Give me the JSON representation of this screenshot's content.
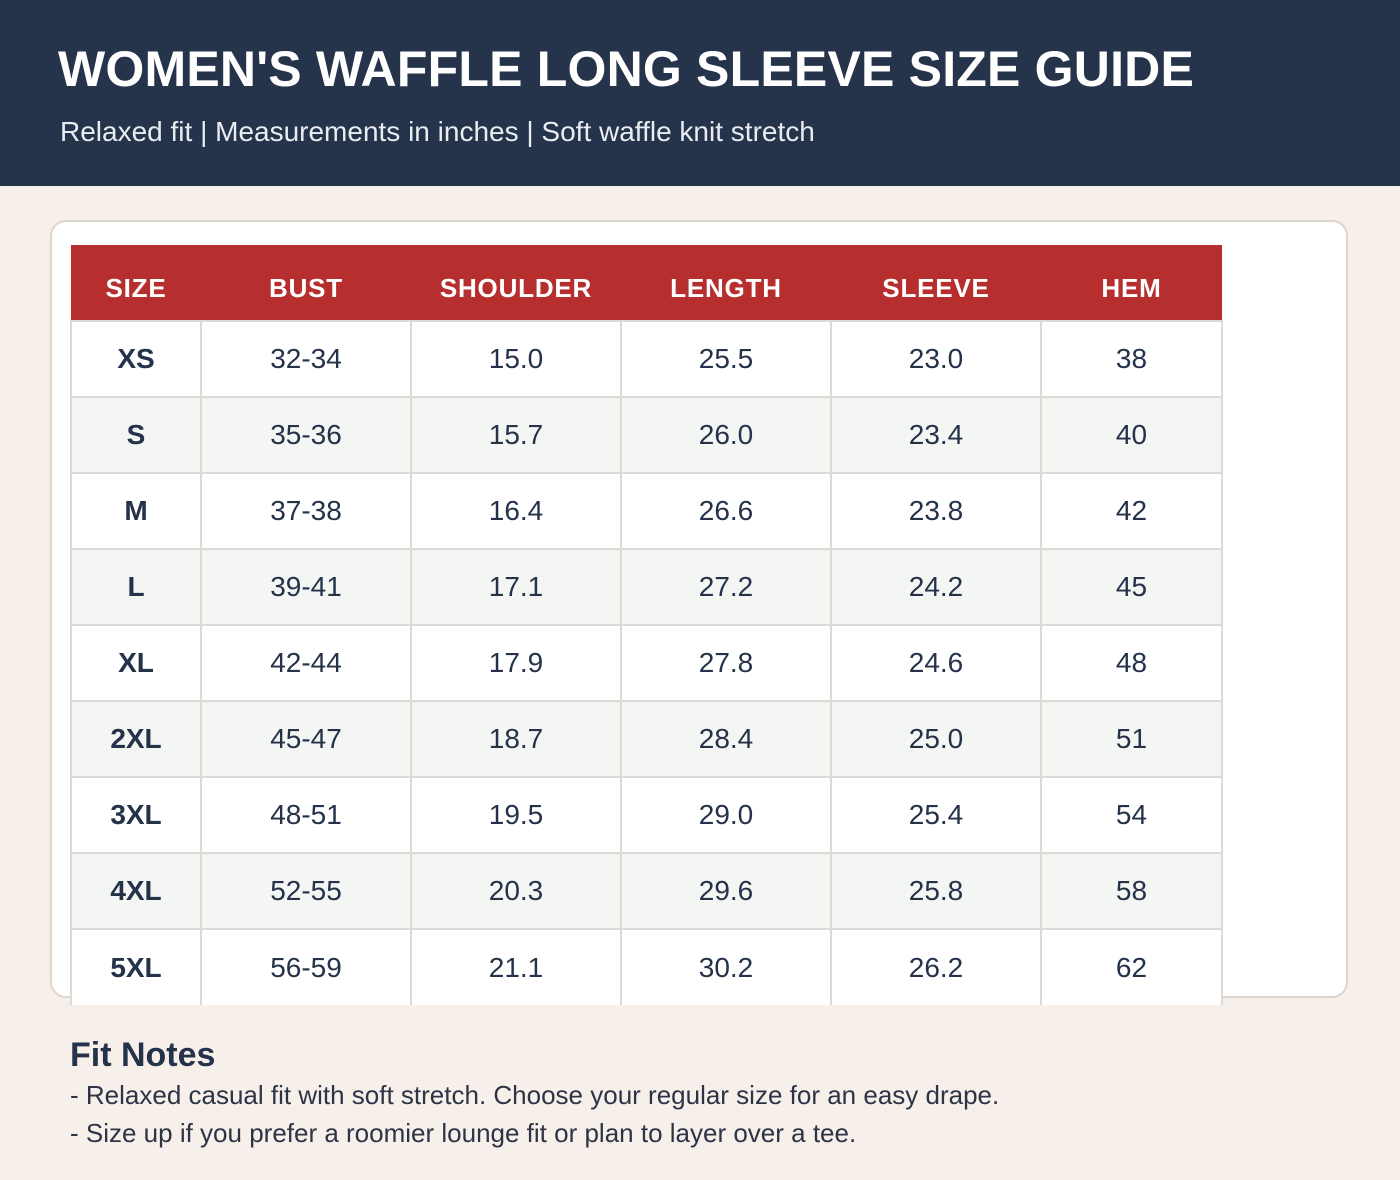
{
  "header": {
    "title": "WOMEN'S WAFFLE LONG SLEEVE SIZE GUIDE",
    "subtitle": "Relaxed fit | Measurements in inches | Soft waffle knit stretch",
    "background_color": "#25334b"
  },
  "table": {
    "header_color": "#b72e2e",
    "columns": [
      "SIZE",
      "BUST",
      "SHOULDER",
      "LENGTH",
      "SLEEVE",
      "HEM"
    ],
    "rows": [
      [
        "XS",
        "32-34",
        "15.0",
        "25.5",
        "23.0",
        "38"
      ],
      [
        "S",
        "35-36",
        "15.7",
        "26.0",
        "23.4",
        "40"
      ],
      [
        "M",
        "37-38",
        "16.4",
        "26.6",
        "23.8",
        "42"
      ],
      [
        "L",
        "39-41",
        "17.1",
        "27.2",
        "24.2",
        "45"
      ],
      [
        "XL",
        "42-44",
        "17.9",
        "27.8",
        "24.6",
        "48"
      ],
      [
        "2XL",
        "45-47",
        "18.7",
        "28.4",
        "25.0",
        "51"
      ],
      [
        "3XL",
        "48-51",
        "19.5",
        "29.0",
        "25.4",
        "54"
      ],
      [
        "4XL",
        "52-55",
        "20.3",
        "29.6",
        "25.8",
        "58"
      ],
      [
        "5XL",
        "56-59",
        "21.1",
        "30.2",
        "26.2",
        "62"
      ]
    ]
  },
  "notes": {
    "title": "Fit Notes",
    "lines": [
      "- Relaxed casual fit with soft stretch. Choose your regular size for an easy drape.",
      "- Size up if you prefer a roomier lounge fit or plan to layer over a tee."
    ]
  }
}
